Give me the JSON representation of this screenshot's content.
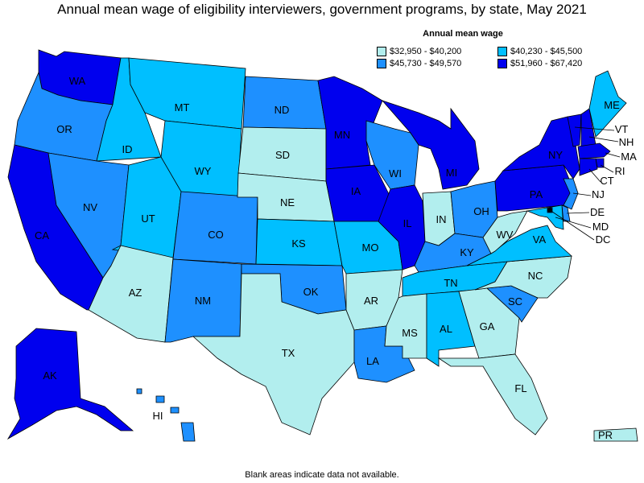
{
  "title": "Annual mean wage of eligibility interviewers, government programs, by state, May 2021",
  "legend": {
    "title": "Annual mean wage",
    "items": [
      {
        "label": "$32,950 - $40,200",
        "color": "#b2eeee"
      },
      {
        "label": "$40,230 - $45,500",
        "color": "#00bfff"
      },
      {
        "label": "$45,730 - $49,570",
        "color": "#1e90ff"
      },
      {
        "label": "$51,960 - $67,420",
        "color": "#0000ee"
      }
    ]
  },
  "footnote": "Blank areas indicate data not available.",
  "colors": {
    "c1": "#b2eeee",
    "c2": "#00bfff",
    "c3": "#1e90ff",
    "c4": "#0000ee"
  },
  "states": {
    "WA": {
      "label": "WA",
      "bin": 4
    },
    "OR": {
      "label": "OR",
      "bin": 3
    },
    "CA": {
      "label": "CA",
      "bin": 4
    },
    "ID": {
      "label": "ID",
      "bin": 2
    },
    "NV": {
      "label": "NV",
      "bin": 3
    },
    "MT": {
      "label": "MT",
      "bin": 2
    },
    "WY": {
      "label": "WY",
      "bin": 2
    },
    "UT": {
      "label": "UT",
      "bin": 2
    },
    "AZ": {
      "label": "AZ",
      "bin": 1
    },
    "CO": {
      "label": "CO",
      "bin": 3
    },
    "NM": {
      "label": "NM",
      "bin": 3
    },
    "ND": {
      "label": "ND",
      "bin": 3
    },
    "SD": {
      "label": "SD",
      "bin": 1
    },
    "NE": {
      "label": "NE",
      "bin": 1
    },
    "KS": {
      "label": "KS",
      "bin": 2
    },
    "OK": {
      "label": "OK",
      "bin": 3
    },
    "TX": {
      "label": "TX",
      "bin": 1
    },
    "MN": {
      "label": "MN",
      "bin": 4
    },
    "IA": {
      "label": "IA",
      "bin": 4
    },
    "MO": {
      "label": "MO",
      "bin": 2
    },
    "AR": {
      "label": "AR",
      "bin": 1
    },
    "LA": {
      "label": "LA",
      "bin": 3
    },
    "WI": {
      "label": "WI",
      "bin": 3
    },
    "IL": {
      "label": "IL",
      "bin": 4
    },
    "MI": {
      "label": "MI",
      "bin": 4
    },
    "IN": {
      "label": "IN",
      "bin": 1
    },
    "OH": {
      "label": "OH",
      "bin": 3
    },
    "KY": {
      "label": "KY",
      "bin": 3
    },
    "TN": {
      "label": "TN",
      "bin": 2
    },
    "MS": {
      "label": "MS",
      "bin": 1
    },
    "AL": {
      "label": "AL",
      "bin": 2
    },
    "GA": {
      "label": "GA",
      "bin": 1
    },
    "FL": {
      "label": "FL",
      "bin": 1
    },
    "SC": {
      "label": "SC",
      "bin": 3
    },
    "NC": {
      "label": "NC",
      "bin": 1
    },
    "VA": {
      "label": "VA",
      "bin": 2
    },
    "WV": {
      "label": "WV",
      "bin": 1
    },
    "PA": {
      "label": "PA",
      "bin": 4
    },
    "NY": {
      "label": "NY",
      "bin": 4
    },
    "ME": {
      "label": "ME",
      "bin": 2
    },
    "VT": {
      "label": "VT",
      "bin": 4
    },
    "NH": {
      "label": "NH",
      "bin": 4
    },
    "MA": {
      "label": "MA",
      "bin": 4
    },
    "RI": {
      "label": "RI",
      "bin": 4
    },
    "CT": {
      "label": "CT",
      "bin": 4
    },
    "NJ": {
      "label": "NJ",
      "bin": 3
    },
    "DE": {
      "label": "DE",
      "bin": 3
    },
    "MD": {
      "label": "MD",
      "bin": 2
    },
    "DC": {
      "label": "DC",
      "bin": 4
    },
    "AK": {
      "label": "AK",
      "bin": 4
    },
    "HI": {
      "label": "HI",
      "bin": 3
    },
    "PR": {
      "label": "PR",
      "bin": 1
    }
  }
}
